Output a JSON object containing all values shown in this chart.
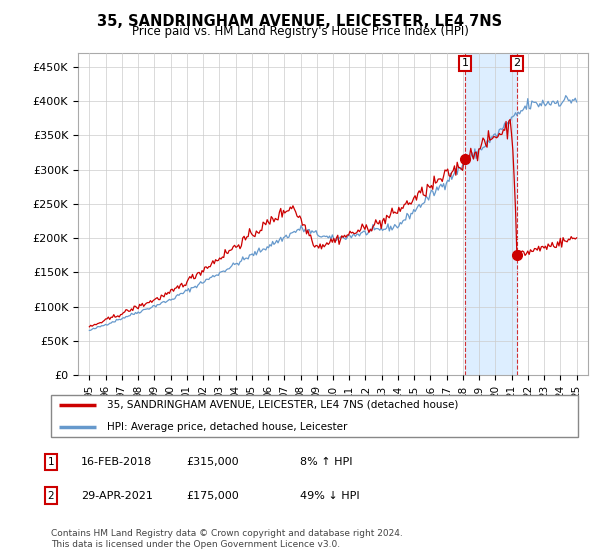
{
  "title": "35, SANDRINGHAM AVENUE, LEICESTER, LE4 7NS",
  "subtitle": "Price paid vs. HM Land Registry's House Price Index (HPI)",
  "ylabel_ticks": [
    "£0",
    "£50K",
    "£100K",
    "£150K",
    "£200K",
    "£250K",
    "£300K",
    "£350K",
    "£400K",
    "£450K"
  ],
  "ytick_values": [
    0,
    50000,
    100000,
    150000,
    200000,
    250000,
    300000,
    350000,
    400000,
    450000
  ],
  "ylim": [
    0,
    470000
  ],
  "ann1_year": 2018.12,
  "ann1_value": 315000,
  "ann1_date": "16-FEB-2018",
  "ann1_price": "£315,000",
  "ann1_pct": "8% ↑ HPI",
  "ann2_year": 2021.33,
  "ann2_value": 175000,
  "ann2_date": "29-APR-2021",
  "ann2_price": "£175,000",
  "ann2_pct": "49% ↓ HPI",
  "legend_line1": "35, SANDRINGHAM AVENUE, LEICESTER, LE4 7NS (detached house)",
  "legend_line2": "HPI: Average price, detached house, Leicester",
  "footnote": "Contains HM Land Registry data © Crown copyright and database right 2024.\nThis data is licensed under the Open Government Licence v3.0.",
  "line_color_red": "#cc0000",
  "line_color_blue": "#6699cc",
  "shade_color": "#ddeeff",
  "bg_color": "#ffffff",
  "grid_color": "#cccccc",
  "ann_box_color": "#cc0000"
}
